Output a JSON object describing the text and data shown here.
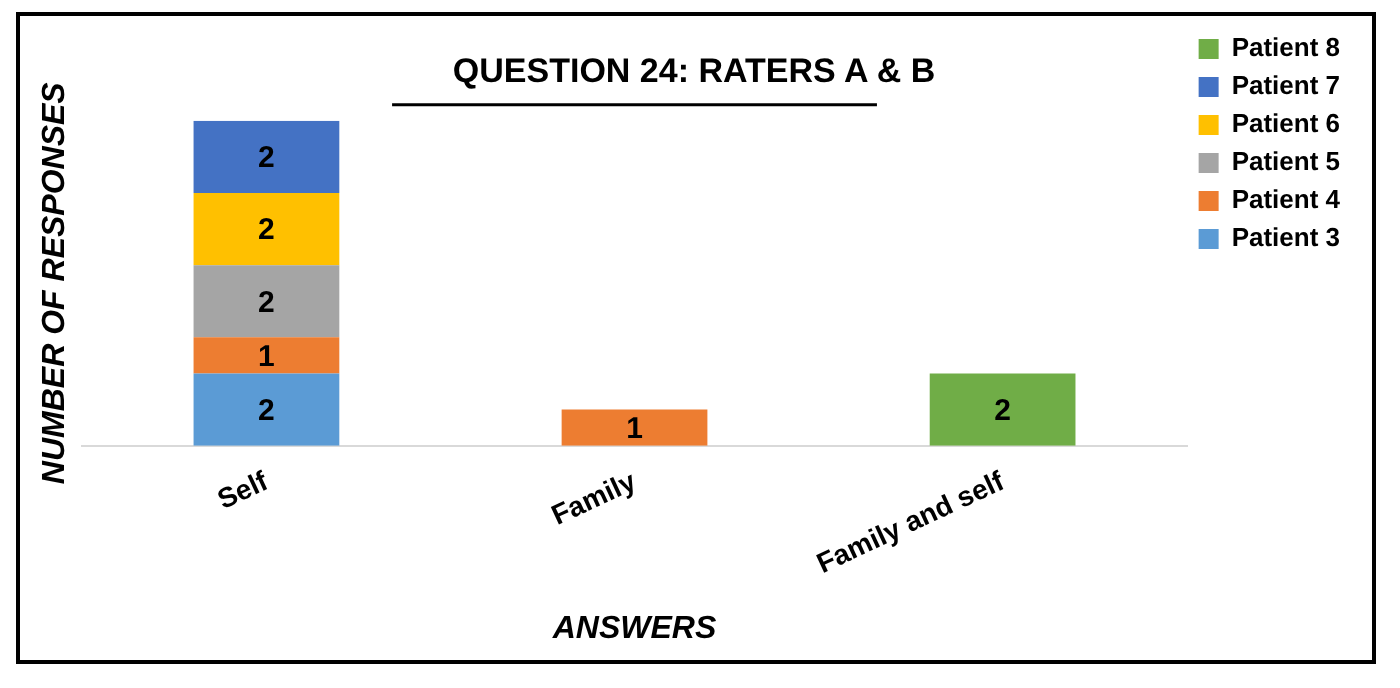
{
  "chart_data": {
    "type": "bar",
    "title": "QUESTION 24: RATERS A & B",
    "xlabel": "ANSWERS",
    "ylabel": "NUMBER OF RESPONSES",
    "categories": [
      "Self",
      "Family",
      "Family and self"
    ],
    "stacked": true,
    "data_labels": true,
    "legend": "top right",
    "grid": false,
    "tick_labels": "x",
    "series": [
      {
        "name": "Patient 3",
        "color": "#5b9bd5",
        "values": [
          2,
          null,
          null
        ]
      },
      {
        "name": "Patient 4",
        "color": "#ed7d31",
        "values": [
          1,
          1,
          null
        ]
      },
      {
        "name": "Patient 5",
        "color": "#a5a5a5",
        "values": [
          2,
          null,
          null
        ]
      },
      {
        "name": "Patient 6",
        "color": "#ffc000",
        "values": [
          2,
          null,
          null
        ]
      },
      {
        "name": "Patient 7",
        "color": "#4472c4",
        "values": [
          2,
          null,
          null
        ]
      },
      {
        "name": "Patient 8",
        "color": "#70ad47",
        "values": [
          null,
          null,
          2
        ]
      }
    ]
  }
}
